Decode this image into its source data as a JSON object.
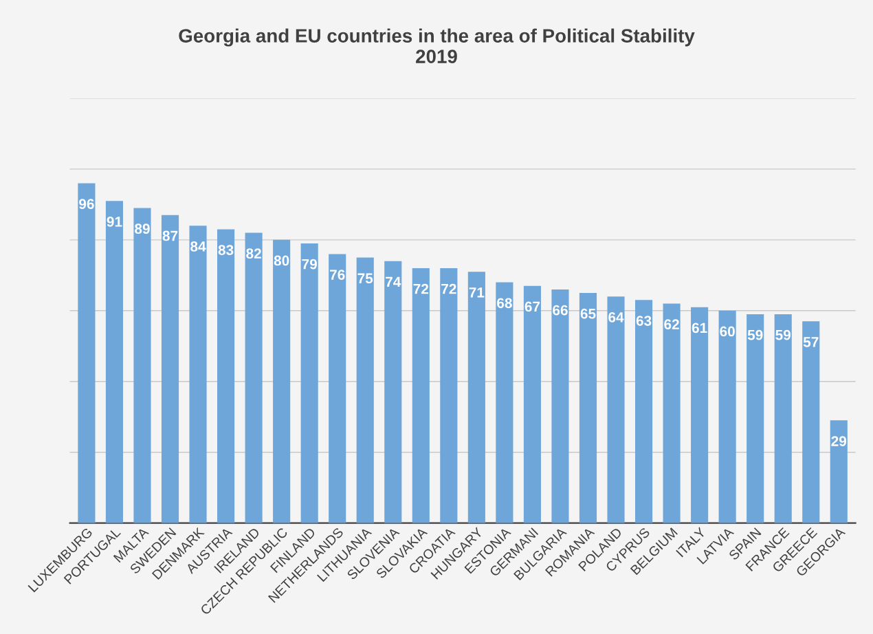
{
  "chart_data": {
    "type": "bar",
    "title": "Georgia and EU countries in the area of Political Stability\n2019",
    "categories": [
      "LUXEMBURG",
      "PORTUGAL",
      "MALTA",
      "SWEDEN",
      "DENMARK",
      "AUSTRIA",
      "IRELAND",
      "CZECH REPUBLIC",
      "FINLAND",
      "NETHERLANDS",
      "LITHUANIA",
      "SLOVENIA",
      "SLOVAKIA",
      "CROATIA",
      "HUNGARY",
      "ESTONIA",
      "GERMANI",
      "BULGARIA",
      "ROMANIA",
      "POLAND",
      "CYPRUS",
      "BELGIUM",
      "ITALY",
      "LATVIA",
      "SPAIN",
      "FRANCE",
      "GREECE",
      "GEORGIA"
    ],
    "values": [
      96,
      91,
      89,
      87,
      84,
      83,
      82,
      80,
      79,
      76,
      75,
      74,
      72,
      72,
      71,
      68,
      67,
      66,
      65,
      64,
      63,
      62,
      61,
      60,
      59,
      59,
      57,
      29
    ],
    "color": "#6fa6da",
    "data_labels": true,
    "ylim": [
      0,
      120
    ],
    "yticks": [
      {
        "value": 0,
        "label": null
      },
      {
        "value": 20,
        "label": null
      },
      {
        "value": 40,
        "label": null
      },
      {
        "value": 60,
        "label": null
      },
      {
        "value": 80,
        "label": null
      },
      {
        "value": 100,
        "label": null
      },
      {
        "value": 120,
        "label": null
      }
    ],
    "grid": "y",
    "tick_labels": "x"
  }
}
